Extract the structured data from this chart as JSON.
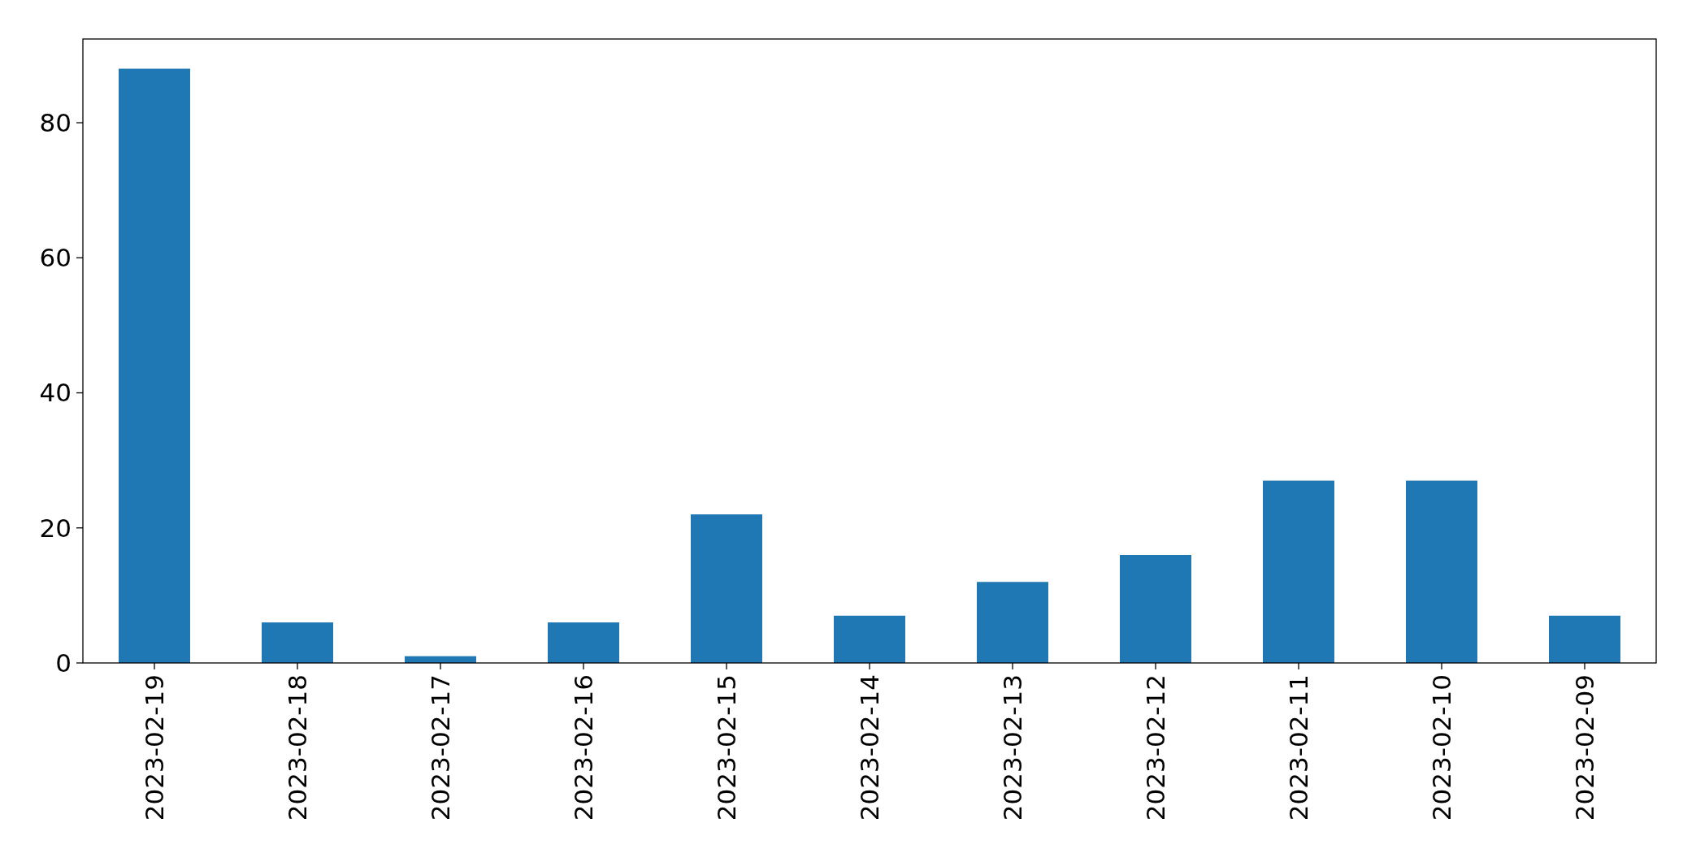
{
  "chart_data": {
    "type": "bar",
    "categories": [
      "2023-02-19",
      "2023-02-18",
      "2023-02-17",
      "2023-02-16",
      "2023-02-15",
      "2023-02-14",
      "2023-02-13",
      "2023-02-12",
      "2023-02-11",
      "2023-02-10",
      "2023-02-09"
    ],
    "values": [
      88,
      6,
      1,
      6,
      22,
      7,
      12,
      16,
      27,
      27,
      7
    ],
    "color": "#1f77b4",
    "ylim": [
      0,
      92.4
    ],
    "yticks": [
      0,
      20,
      40,
      60,
      80
    ],
    "grid": false
  }
}
